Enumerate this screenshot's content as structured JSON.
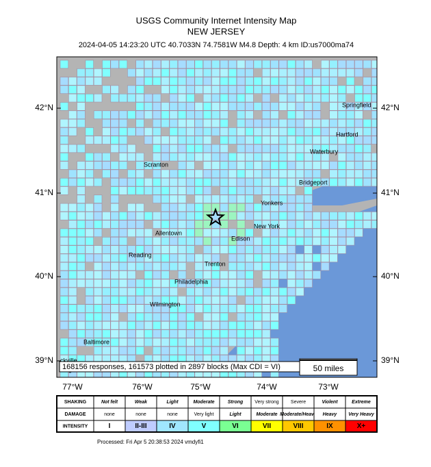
{
  "header": {
    "title": "USGS Community Internet Intensity Map",
    "region": "NEW JERSEY",
    "event": "2024-04-05 14:23:20 UTC 40.7033N 74.7581W M4.8 Depth: 4 km ID:us7000ma74"
  },
  "map": {
    "lat_labels": [
      "42°N",
      "41°N",
      "40°N",
      "39°N"
    ],
    "lon_labels": [
      "77°W",
      "76°W",
      "75°W",
      "74°W",
      "73°W"
    ],
    "cities": [
      "Springfield",
      "Hartford",
      "Waterbury",
      "Scranton",
      "Bridgeport",
      "Yonkers",
      "New York",
      "Edison",
      "Allentown",
      "Reading",
      "Trenton",
      "Philadelphia",
      "Wilmington",
      "Baltimore",
      "ckville",
      "dington"
    ],
    "info": "168156 responses, 161573 plotted in 2897 blocks (Max CDI = VI)",
    "scale": "50 miles"
  },
  "legend": {
    "rows": [
      {
        "label": "SHAKING",
        "cells": [
          "Not felt",
          "Weak",
          "Light",
          "Moderate",
          "Strong",
          "Very strong",
          "Severe",
          "Violent",
          "Extreme"
        ]
      },
      {
        "label": "DAMAGE",
        "cells": [
          "none",
          "none",
          "none",
          "Very light",
          "Light",
          "Moderate",
          "Moderate/Heavy",
          "Heavy",
          "Very Heavy"
        ]
      },
      {
        "label": "INTENSITY",
        "cells": [
          "I",
          "II-III",
          "IV",
          "V",
          "VI",
          "VII",
          "VIII",
          "IX",
          "X+"
        ]
      }
    ]
  },
  "footer": "Processed: Fri Apr  5 20:38:53 2024 vmdyfi1"
}
